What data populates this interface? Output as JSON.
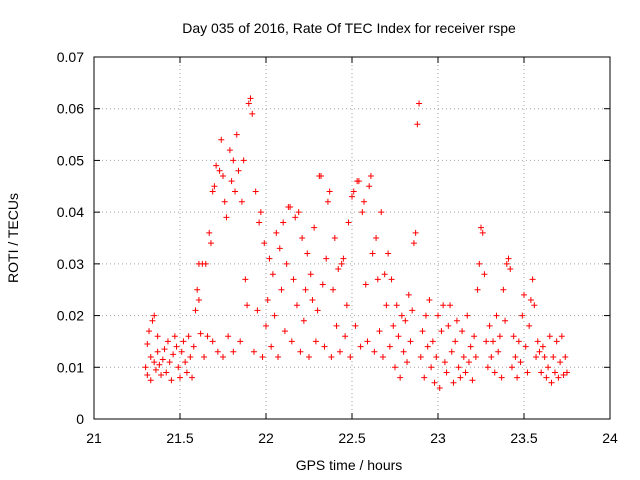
{
  "chart_data": {
    "type": "scatter",
    "title": "Day 035 of 2016, Rate Of TEC Index for receiver rspe",
    "xlabel": "GPS time / hours",
    "ylabel": "ROTI / TECUs",
    "xlim": [
      21,
      24
    ],
    "ylim": [
      0,
      0.07
    ],
    "x_ticks": [
      21,
      21.5,
      22,
      22.5,
      23,
      23.5,
      24
    ],
    "x_tick_labels": [
      "21",
      "21.5",
      "22",
      "22.5",
      "23",
      "23.5",
      "24"
    ],
    "y_ticks": [
      0,
      0.01,
      0.02,
      0.03,
      0.04,
      0.05,
      0.06,
      0.07
    ],
    "y_tick_labels": [
      "0",
      "0.01",
      "0.02",
      "0.03",
      "0.04",
      "0.05",
      "0.06",
      "0.07"
    ],
    "grid": true,
    "marker": "plus",
    "color": "#ff0000",
    "series": [
      {
        "name": "ROTI",
        "points": [
          [
            21.3,
            0.01
          ],
          [
            21.31,
            0.0085
          ],
          [
            21.31,
            0.0145
          ],
          [
            21.32,
            0.017
          ],
          [
            21.33,
            0.012
          ],
          [
            21.33,
            0.0075
          ],
          [
            21.34,
            0.019
          ],
          [
            21.35,
            0.011
          ],
          [
            21.35,
            0.02
          ],
          [
            21.36,
            0.0095
          ],
          [
            21.37,
            0.013
          ],
          [
            21.37,
            0.016
          ],
          [
            21.38,
            0.0105
          ],
          [
            21.39,
            0.0085
          ],
          [
            21.4,
            0.0115
          ],
          [
            21.41,
            0.0135
          ],
          [
            21.42,
            0.009
          ],
          [
            21.43,
            0.015
          ],
          [
            21.44,
            0.011
          ],
          [
            21.45,
            0.0075
          ],
          [
            21.46,
            0.0125
          ],
          [
            21.47,
            0.016
          ],
          [
            21.48,
            0.014
          ],
          [
            21.49,
            0.01
          ],
          [
            21.5,
            0.008
          ],
          [
            21.51,
            0.013
          ],
          [
            21.52,
            0.015
          ],
          [
            21.53,
            0.011
          ],
          [
            21.54,
            0.009
          ],
          [
            21.55,
            0.016
          ],
          [
            21.56,
            0.012
          ],
          [
            21.57,
            0.008
          ],
          [
            21.58,
            0.014
          ],
          [
            21.59,
            0.021
          ],
          [
            21.6,
            0.025
          ],
          [
            21.61,
            0.023
          ],
          [
            21.61,
            0.03
          ],
          [
            21.62,
            0.0165
          ],
          [
            21.63,
            0.03
          ],
          [
            21.64,
            0.012
          ],
          [
            21.65,
            0.03
          ],
          [
            21.66,
            0.016
          ],
          [
            21.67,
            0.036
          ],
          [
            21.68,
            0.034
          ],
          [
            21.69,
            0.044
          ],
          [
            21.69,
            0.015
          ],
          [
            21.7,
            0.045
          ],
          [
            21.71,
            0.049
          ],
          [
            21.72,
            0.013
          ],
          [
            21.73,
            0.048
          ],
          [
            21.74,
            0.054
          ],
          [
            21.75,
            0.047
          ],
          [
            21.75,
            0.012
          ],
          [
            21.76,
            0.042
          ],
          [
            21.77,
            0.039
          ],
          [
            21.78,
            0.016
          ],
          [
            21.79,
            0.052
          ],
          [
            21.8,
            0.046
          ],
          [
            21.81,
            0.05
          ],
          [
            21.81,
            0.013
          ],
          [
            21.82,
            0.044
          ],
          [
            21.83,
            0.055
          ],
          [
            21.84,
            0.048
          ],
          [
            21.85,
            0.015
          ],
          [
            21.86,
            0.042
          ],
          [
            21.87,
            0.05
          ],
          [
            21.88,
            0.027
          ],
          [
            21.89,
            0.022
          ],
          [
            21.9,
            0.061
          ],
          [
            21.91,
            0.062
          ],
          [
            21.92,
            0.059
          ],
          [
            21.93,
            0.013
          ],
          [
            21.94,
            0.044
          ],
          [
            21.95,
            0.021
          ],
          [
            21.96,
            0.038
          ],
          [
            21.97,
            0.04
          ],
          [
            21.98,
            0.012
          ],
          [
            21.99,
            0.034
          ],
          [
            22.0,
            0.018
          ],
          [
            22.01,
            0.023
          ],
          [
            22.02,
            0.031
          ],
          [
            22.03,
            0.014
          ],
          [
            22.04,
            0.028
          ],
          [
            22.05,
            0.02
          ],
          [
            22.06,
            0.036
          ],
          [
            22.07,
            0.012
          ],
          [
            22.08,
            0.033
          ],
          [
            22.09,
            0.025
          ],
          [
            22.1,
            0.038
          ],
          [
            22.11,
            0.017
          ],
          [
            22.12,
            0.03
          ],
          [
            22.13,
            0.041
          ],
          [
            22.14,
            0.041
          ],
          [
            22.15,
            0.015
          ],
          [
            22.16,
            0.027
          ],
          [
            22.17,
            0.039
          ],
          [
            22.18,
            0.022
          ],
          [
            22.19,
            0.04
          ],
          [
            22.2,
            0.013
          ],
          [
            22.21,
            0.035
          ],
          [
            22.22,
            0.019
          ],
          [
            22.23,
            0.025
          ],
          [
            22.24,
            0.032
          ],
          [
            22.25,
            0.012
          ],
          [
            22.26,
            0.028
          ],
          [
            22.27,
            0.023
          ],
          [
            22.28,
            0.037
          ],
          [
            22.29,
            0.015
          ],
          [
            22.3,
            0.021
          ],
          [
            22.31,
            0.047
          ],
          [
            22.32,
            0.047
          ],
          [
            22.33,
            0.026
          ],
          [
            22.34,
            0.014
          ],
          [
            22.35,
            0.031
          ],
          [
            22.36,
            0.042
          ],
          [
            22.37,
            0.044
          ],
          [
            22.38,
            0.012
          ],
          [
            22.39,
            0.025
          ],
          [
            22.4,
            0.035
          ],
          [
            22.41,
            0.018
          ],
          [
            22.42,
            0.029
          ],
          [
            22.43,
            0.013
          ],
          [
            22.44,
            0.03
          ],
          [
            22.45,
            0.031
          ],
          [
            22.46,
            0.016
          ],
          [
            22.47,
            0.022
          ],
          [
            22.48,
            0.038
          ],
          [
            22.49,
            0.012
          ],
          [
            22.5,
            0.043
          ],
          [
            22.51,
            0.044
          ],
          [
            22.52,
            0.018
          ],
          [
            22.53,
            0.046
          ],
          [
            22.54,
            0.046
          ],
          [
            22.55,
            0.014
          ],
          [
            22.56,
            0.04
          ],
          [
            22.57,
            0.042
          ],
          [
            22.58,
            0.026
          ],
          [
            22.59,
            0.015
          ],
          [
            22.6,
            0.045
          ],
          [
            22.61,
            0.047
          ],
          [
            22.62,
            0.032
          ],
          [
            22.63,
            0.013
          ],
          [
            22.64,
            0.035
          ],
          [
            22.65,
            0.027
          ],
          [
            22.66,
            0.017
          ],
          [
            22.67,
            0.04
          ],
          [
            22.68,
            0.012
          ],
          [
            22.69,
            0.028
          ],
          [
            22.7,
            0.022
          ],
          [
            22.71,
            0.032
          ],
          [
            22.72,
            0.014
          ],
          [
            22.73,
            0.027
          ],
          [
            22.74,
            0.018
          ],
          [
            22.75,
            0.01
          ],
          [
            22.76,
            0.022
          ],
          [
            22.77,
            0.016
          ],
          [
            22.78,
            0.008
          ],
          [
            22.79,
            0.02
          ],
          [
            22.8,
            0.013
          ],
          [
            22.81,
            0.019
          ],
          [
            22.82,
            0.011
          ],
          [
            22.83,
            0.024
          ],
          [
            22.84,
            0.015
          ],
          [
            22.85,
            0.021
          ],
          [
            22.86,
            0.034
          ],
          [
            22.87,
            0.036
          ],
          [
            22.88,
            0.057
          ],
          [
            22.89,
            0.061
          ],
          [
            22.9,
            0.012
          ],
          [
            22.91,
            0.017
          ],
          [
            22.92,
            0.008
          ],
          [
            22.93,
            0.02
          ],
          [
            22.94,
            0.014
          ],
          [
            22.95,
            0.023
          ],
          [
            22.96,
            0.01
          ],
          [
            22.97,
            0.015
          ],
          [
            22.98,
            0.007
          ],
          [
            22.99,
            0.012
          ],
          [
            23.0,
            0.02
          ],
          [
            23.01,
            0.006
          ],
          [
            23.02,
            0.017
          ],
          [
            23.03,
            0.022
          ],
          [
            23.04,
            0.011
          ],
          [
            23.05,
            0.009
          ],
          [
            23.06,
            0.018
          ],
          [
            23.07,
            0.022
          ],
          [
            23.08,
            0.013
          ],
          [
            23.09,
            0.007
          ],
          [
            23.1,
            0.015
          ],
          [
            23.11,
            0.019
          ],
          [
            23.12,
            0.01
          ],
          [
            23.13,
            0.008
          ],
          [
            23.14,
            0.017
          ],
          [
            23.15,
            0.012
          ],
          [
            23.16,
            0.009
          ],
          [
            23.17,
            0.02
          ],
          [
            23.18,
            0.011
          ],
          [
            23.19,
            0.014
          ],
          [
            23.2,
            0.0075
          ],
          [
            23.21,
            0.016
          ],
          [
            23.22,
            0.012
          ],
          [
            23.23,
            0.025
          ],
          [
            23.24,
            0.03
          ],
          [
            23.25,
            0.037
          ],
          [
            23.26,
            0.036
          ],
          [
            23.27,
            0.028
          ],
          [
            23.28,
            0.015
          ],
          [
            23.29,
            0.01
          ],
          [
            23.3,
            0.018
          ],
          [
            23.31,
            0.012
          ],
          [
            23.32,
            0.015
          ],
          [
            23.33,
            0.009
          ],
          [
            23.34,
            0.02
          ],
          [
            23.35,
            0.013
          ],
          [
            23.36,
            0.016
          ],
          [
            23.37,
            0.008
          ],
          [
            23.38,
            0.025
          ],
          [
            23.39,
            0.019
          ],
          [
            23.4,
            0.03
          ],
          [
            23.41,
            0.031
          ],
          [
            23.42,
            0.029
          ],
          [
            23.43,
            0.01
          ],
          [
            23.44,
            0.016
          ],
          [
            23.45,
            0.012
          ],
          [
            23.46,
            0.008
          ],
          [
            23.47,
            0.015
          ],
          [
            23.48,
            0.011
          ],
          [
            23.49,
            0.02
          ],
          [
            23.5,
            0.024
          ],
          [
            23.51,
            0.014
          ],
          [
            23.52,
            0.009
          ],
          [
            23.53,
            0.018
          ],
          [
            23.54,
            0.023
          ],
          [
            23.55,
            0.027
          ],
          [
            23.56,
            0.022
          ],
          [
            23.57,
            0.012
          ],
          [
            23.58,
            0.015
          ],
          [
            23.59,
            0.013
          ],
          [
            23.6,
            0.009
          ],
          [
            23.61,
            0.014
          ],
          [
            23.62,
            0.012
          ],
          [
            23.63,
            0.008
          ],
          [
            23.64,
            0.01
          ],
          [
            23.65,
            0.016
          ],
          [
            23.66,
            0.007
          ],
          [
            23.67,
            0.012
          ],
          [
            23.68,
            0.009
          ],
          [
            23.69,
            0.015
          ],
          [
            23.7,
            0.008
          ],
          [
            23.71,
            0.011
          ],
          [
            23.72,
            0.016
          ],
          [
            23.73,
            0.0085
          ],
          [
            23.74,
            0.012
          ],
          [
            23.75,
            0.009
          ]
        ]
      }
    ]
  }
}
